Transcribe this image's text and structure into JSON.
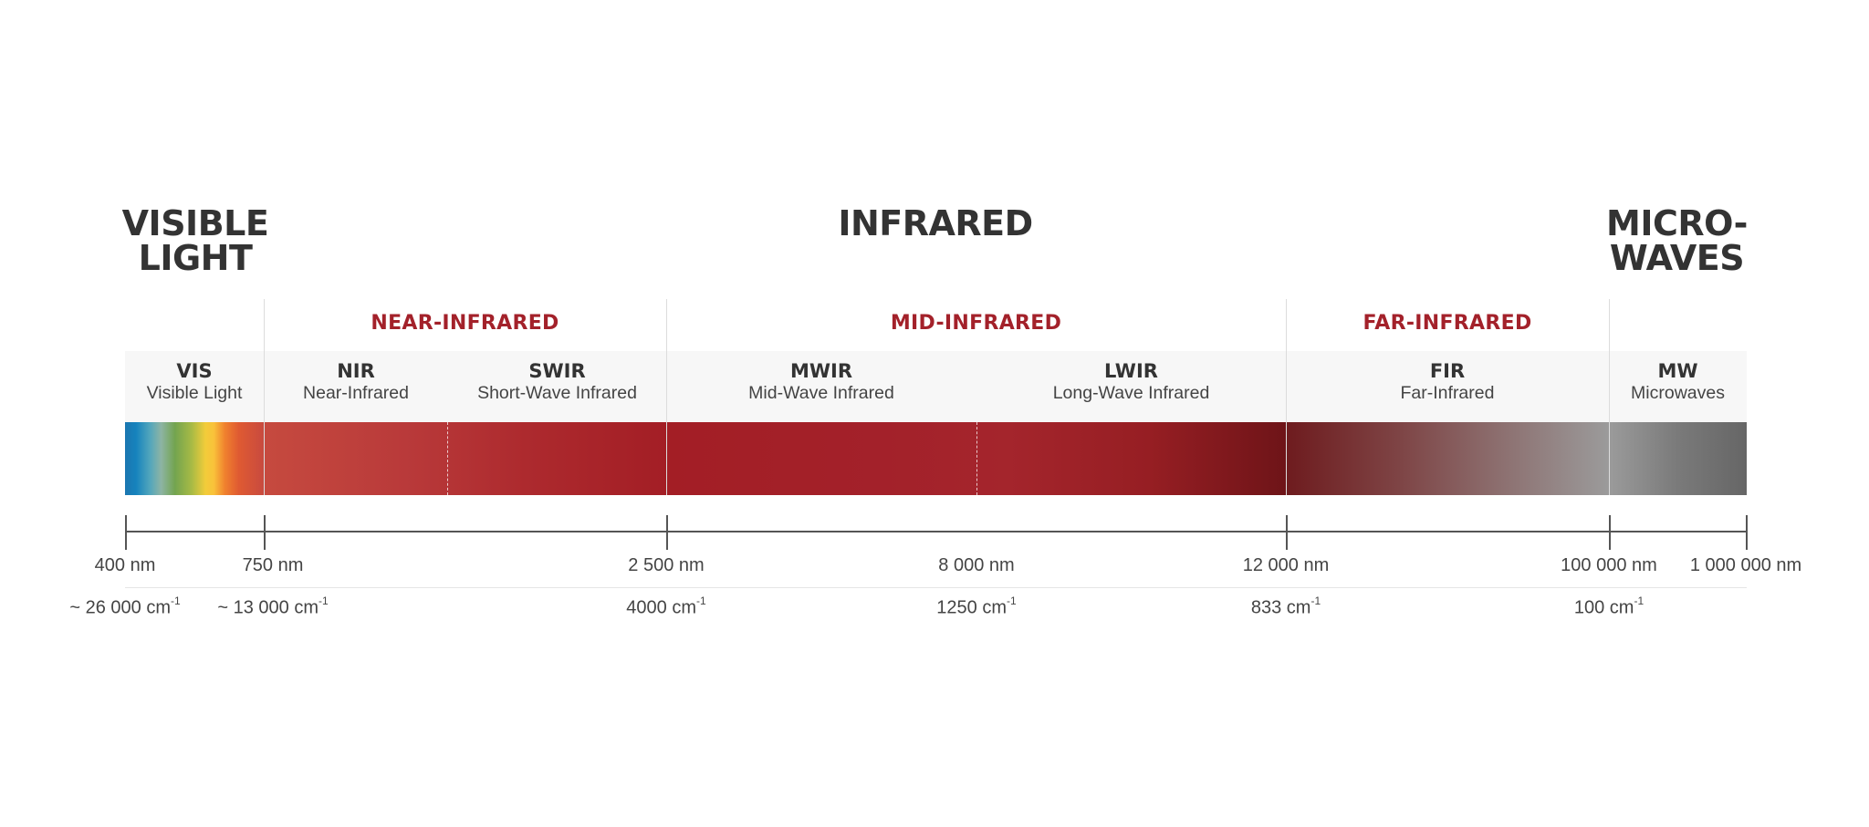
{
  "regions": {
    "visible": [
      "VISIBLE",
      "LIGHT"
    ],
    "infrared": [
      "INFRARED"
    ],
    "microwaves": [
      "MICRO-",
      "WAVES"
    ]
  },
  "subregions": {
    "near": "NEAR-INFRARED",
    "mid": "MID-INFRARED",
    "far": "FAR-INFRARED"
  },
  "bands": [
    {
      "abbr": "VIS",
      "name": "Visible Light"
    },
    {
      "abbr": "NIR",
      "name": "Near-Infrared"
    },
    {
      "abbr": "SWIR",
      "name": "Short-Wave Infrared"
    },
    {
      "abbr": "MWIR",
      "name": "Mid-Wave Infrared"
    },
    {
      "abbr": "LWIR",
      "name": "Long-Wave Infrared"
    },
    {
      "abbr": "FIR",
      "name": "Far-Infrared"
    },
    {
      "abbr": "MW",
      "name": "Microwaves"
    }
  ],
  "wavelengths": [
    "400 nm",
    "750 nm",
    "2 500 nm",
    "8 000 nm",
    "12 000 nm",
    "100 000 nm",
    "1 000 000 nm"
  ],
  "wavenumbers": [
    {
      "value": "~ 26 000 cm",
      "unit_sup": "-1"
    },
    {
      "value": "~ 13 000 cm",
      "unit_sup": "-1"
    },
    {
      "value": "4000 cm",
      "unit_sup": "-1"
    },
    {
      "value": "1250 cm",
      "unit_sup": "-1"
    },
    {
      "value": "833 cm",
      "unit_sup": "-1"
    },
    {
      "value": "100 cm",
      "unit_sup": "-1"
    }
  ],
  "colors": {
    "accent_red": "#a3212a",
    "heading": "#333333",
    "band_background": "#f7f7f7"
  }
}
